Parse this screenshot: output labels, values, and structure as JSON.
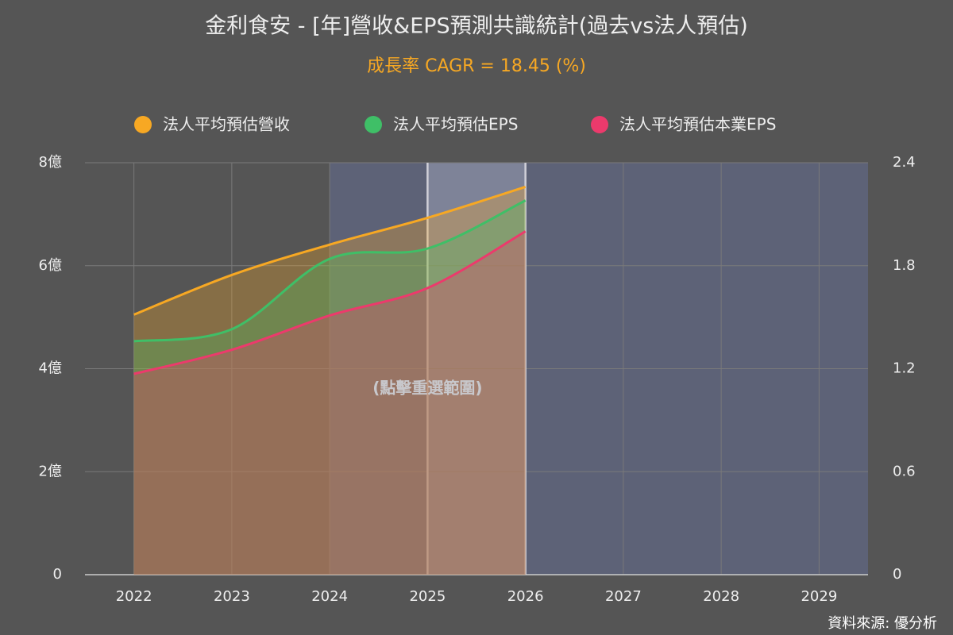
{
  "chart_data": {
    "type": "area",
    "title": "金利食安 - [年]營收&EPS預測共識統計(過去vs法人預估)",
    "subtitle": "成長率 CAGR = 18.45 (%)",
    "annotation": "(點擊重選範圍)",
    "source": "資料來源: 優分析",
    "categories": [
      "2022",
      "2023",
      "2024",
      "2025",
      "2026",
      "2027",
      "2028",
      "2029"
    ],
    "series": [
      {
        "name": "法人平均預估營收",
        "color": "#f7a823",
        "values": [
          5.05,
          5.82,
          6.41,
          6.93,
          7.53,
          null,
          null,
          null
        ]
      },
      {
        "name": "法人平均預估EPS",
        "color": "#3fbf67",
        "axis": "y2",
        "values": [
          1.36,
          1.43,
          1.84,
          1.9,
          2.18,
          null,
          null,
          null
        ]
      },
      {
        "name": "法人平均預估本業EPS",
        "color": "#ec3a6c",
        "axis": "y2",
        "values": [
          1.17,
          1.31,
          1.51,
          1.67,
          2.0,
          null,
          null,
          null
        ]
      }
    ],
    "ylim": [
      0,
      8
    ],
    "yticks": [
      0,
      {
        "value": 2,
        "label": "2億"
      },
      {
        "value": 4,
        "label": "4億"
      },
      {
        "value": 6,
        "label": "6億"
      },
      {
        "value": 8,
        "label": "8億"
      }
    ],
    "y2lim": [
      0,
      2.4
    ],
    "y2ticks": [
      0,
      0.6,
      1.2,
      1.8,
      2.4
    ],
    "grid": true
  }
}
